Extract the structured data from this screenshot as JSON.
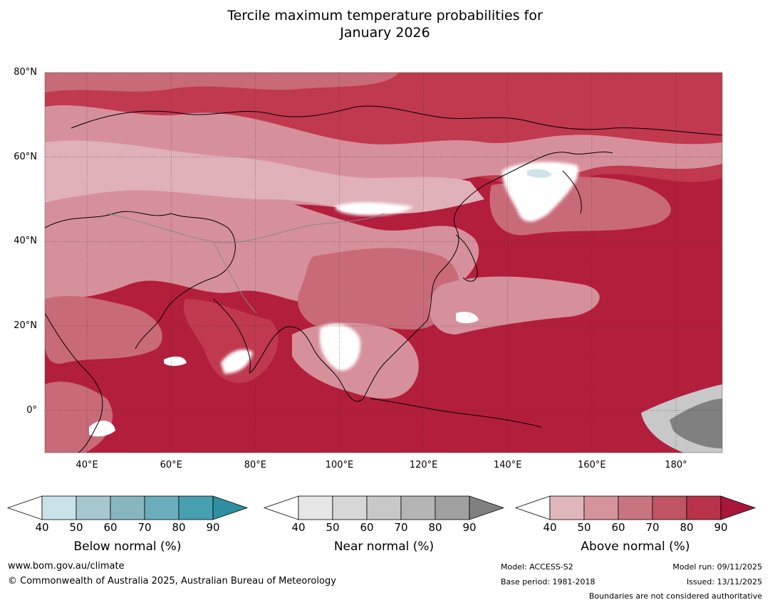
{
  "title": {
    "line1": "Tercile maximum temperature probabilities for",
    "line2": "January 2026"
  },
  "map": {
    "lon_range": [
      30,
      191
    ],
    "lat_range": [
      -10,
      80
    ],
    "lat_ticks": [
      {
        "value": 80,
        "label": "80°N"
      },
      {
        "value": 60,
        "label": "60°N"
      },
      {
        "value": 40,
        "label": "40°N"
      },
      {
        "value": 20,
        "label": "20°N"
      },
      {
        "value": 0,
        "label": "0°"
      }
    ],
    "lon_ticks": [
      {
        "value": 40,
        "label": "40°E"
      },
      {
        "value": 60,
        "label": "60°E"
      },
      {
        "value": 80,
        "label": "80°E"
      },
      {
        "value": 100,
        "label": "100°E"
      },
      {
        "value": 120,
        "label": "120°E"
      },
      {
        "value": 140,
        "label": "140°E"
      },
      {
        "value": 160,
        "label": "160°E"
      },
      {
        "value": 180,
        "label": "180°"
      }
    ],
    "colors": {
      "ocean_above90": "#b31e3c",
      "above80": "#c0394f",
      "above70": "#c96a78",
      "above60": "#d6909b",
      "above50": "#e0b1b8",
      "near_white": "#ffffff",
      "near_grey": "#9e9e9e",
      "near_dark": "#7e7e7e",
      "below_light": "#cfe3ea"
    }
  },
  "legends": [
    {
      "name": "below",
      "title": "Below normal (%)",
      "ticks": [
        "40",
        "50",
        "60",
        "70",
        "80",
        "90"
      ],
      "colors": [
        "#c9e2e8",
        "#a6c7cd",
        "#87b6c0",
        "#6aadbc",
        "#47a0b1",
        "#2f8ea0"
      ]
    },
    {
      "name": "near",
      "title": "Near normal (%)",
      "ticks": [
        "40",
        "50",
        "60",
        "70",
        "80",
        "90"
      ],
      "colors": [
        "#e6e6e6",
        "#d7d7d7",
        "#c8c8c8",
        "#b5b5b5",
        "#a0a0a0",
        "#808080"
      ]
    },
    {
      "name": "above",
      "title": "Above normal (%)",
      "ticks": [
        "40",
        "50",
        "60",
        "70",
        "80",
        "90"
      ],
      "colors": [
        "#e1b6bb",
        "#d5939c",
        "#c87580",
        "#bf5565",
        "#b8334a",
        "#a8163a"
      ]
    }
  ],
  "footer": {
    "website": "www.bom.gov.au/climate",
    "copyright": "© Commonwealth of Australia 2025, Australian Bureau of Meteorology",
    "model": "Model: ACCESS-S2",
    "base_period": "Base period: 1981-2018",
    "model_run": "Model run: 09/11/2025",
    "issued": "Issued: 13/11/2025",
    "disclaimer": "Boundaries are not considered authoritative"
  }
}
